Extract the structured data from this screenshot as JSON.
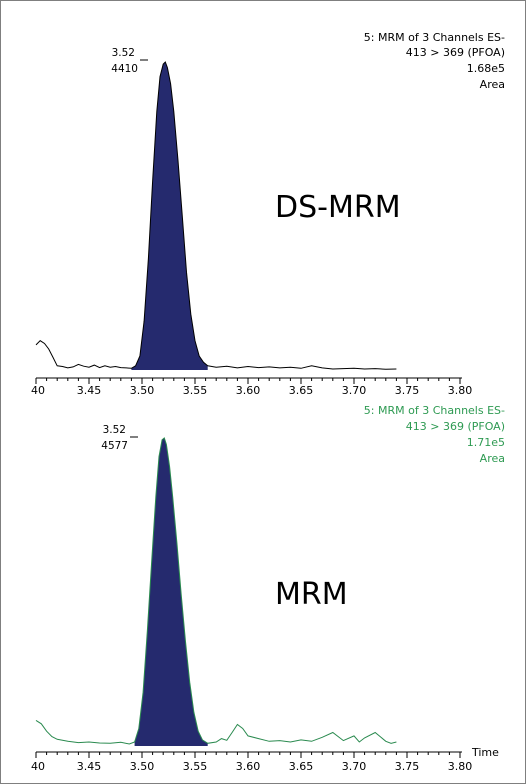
{
  "colors": {
    "peak_fill": "#252a6e",
    "trace_top": "#000000",
    "trace_bottom": "#2a8a4f",
    "header_top": "#000000",
    "header_bottom": "#2e9a52",
    "axis": "#000000"
  },
  "panels": [
    {
      "header": {
        "line1": "5: MRM of 3 Channels ES-",
        "line2": "413 > 369 (PFOA)",
        "line3": "1.68e5",
        "line4": "Area"
      },
      "peak_label": {
        "time": "3.52",
        "height": "4410"
      },
      "method_label": "DS-MRM"
    },
    {
      "header": {
        "line1": "5: MRM of 3 Channels ES-",
        "line2": "413 > 369 (PFOA)",
        "line3": "1.71e5",
        "line4": "Area"
      },
      "peak_label": {
        "time": "3.52",
        "height": "4577"
      },
      "method_label": "MRM"
    }
  ],
  "x_axis": {
    "tick_labels": [
      "40",
      "3.45",
      "3.50",
      "3.55",
      "3.60",
      "3.65",
      "3.70",
      "3.75",
      "3.80"
    ],
    "title": "Time"
  },
  "chart_data": [
    {
      "type": "line",
      "title": "5: MRM of 3 Channels ES- 413 > 369 (PFOA)",
      "annotation": "DS-MRM",
      "xlim": [
        3.4,
        3.8
      ],
      "ylim": [
        0,
        4410
      ],
      "peak": {
        "x": 3.52,
        "y": 4410,
        "area": "1.68e5"
      },
      "x": [
        3.4,
        3.404,
        3.408,
        3.412,
        3.416,
        3.42,
        3.425,
        3.43,
        3.435,
        3.44,
        3.445,
        3.45,
        3.455,
        3.46,
        3.465,
        3.47,
        3.475,
        3.48,
        3.485,
        3.49,
        3.494,
        3.498,
        3.502,
        3.506,
        3.51,
        3.514,
        3.517,
        3.52,
        3.522,
        3.524,
        3.527,
        3.53,
        3.534,
        3.538,
        3.542,
        3.546,
        3.55,
        3.554,
        3.558,
        3.562,
        3.57,
        3.58,
        3.59,
        3.6,
        3.61,
        3.62,
        3.63,
        3.64,
        3.65,
        3.66,
        3.67,
        3.68,
        3.69,
        3.7,
        3.71,
        3.72,
        3.73,
        3.74
      ],
      "y": [
        360,
        420,
        380,
        300,
        180,
        60,
        50,
        30,
        45,
        80,
        55,
        40,
        70,
        35,
        60,
        40,
        50,
        35,
        30,
        25,
        60,
        200,
        700,
        1600,
        2700,
        3700,
        4200,
        4380,
        4410,
        4330,
        4100,
        3700,
        3000,
        2200,
        1400,
        800,
        420,
        200,
        110,
        60,
        40,
        55,
        30,
        50,
        35,
        45,
        30,
        40,
        25,
        60,
        30,
        15,
        20,
        25,
        15,
        20,
        10,
        15
      ]
    },
    {
      "type": "line",
      "title": "5: MRM of 3 Channels ES- 413 > 369 (PFOA)",
      "annotation": "MRM",
      "xlabel": "Time",
      "xlim": [
        3.4,
        3.8
      ],
      "ylim": [
        0,
        4577
      ],
      "peak": {
        "x": 3.52,
        "y": 4577,
        "area": "1.71e5"
      },
      "x": [
        3.4,
        3.405,
        3.41,
        3.415,
        3.42,
        3.43,
        3.44,
        3.45,
        3.46,
        3.47,
        3.48,
        3.488,
        3.493,
        3.497,
        3.501,
        3.505,
        3.509,
        3.513,
        3.516,
        3.519,
        3.521,
        3.523,
        3.526,
        3.529,
        3.533,
        3.537,
        3.541,
        3.545,
        3.549,
        3.553,
        3.557,
        3.562,
        3.57,
        3.575,
        3.58,
        3.585,
        3.59,
        3.595,
        3.6,
        3.61,
        3.62,
        3.63,
        3.64,
        3.65,
        3.66,
        3.67,
        3.68,
        3.69,
        3.7,
        3.705,
        3.71,
        3.72,
        3.73,
        3.735,
        3.74
      ],
      "y": [
        380,
        330,
        220,
        140,
        100,
        70,
        50,
        60,
        45,
        40,
        55,
        30,
        60,
        260,
        800,
        1700,
        2700,
        3700,
        4300,
        4550,
        4577,
        4480,
        4150,
        3700,
        3000,
        2250,
        1550,
        950,
        500,
        220,
        90,
        40,
        60,
        110,
        85,
        200,
        320,
        260,
        150,
        110,
        70,
        80,
        60,
        90,
        70,
        130,
        200,
        80,
        150,
        60,
        120,
        200,
        70,
        40,
        60
      ]
    }
  ]
}
